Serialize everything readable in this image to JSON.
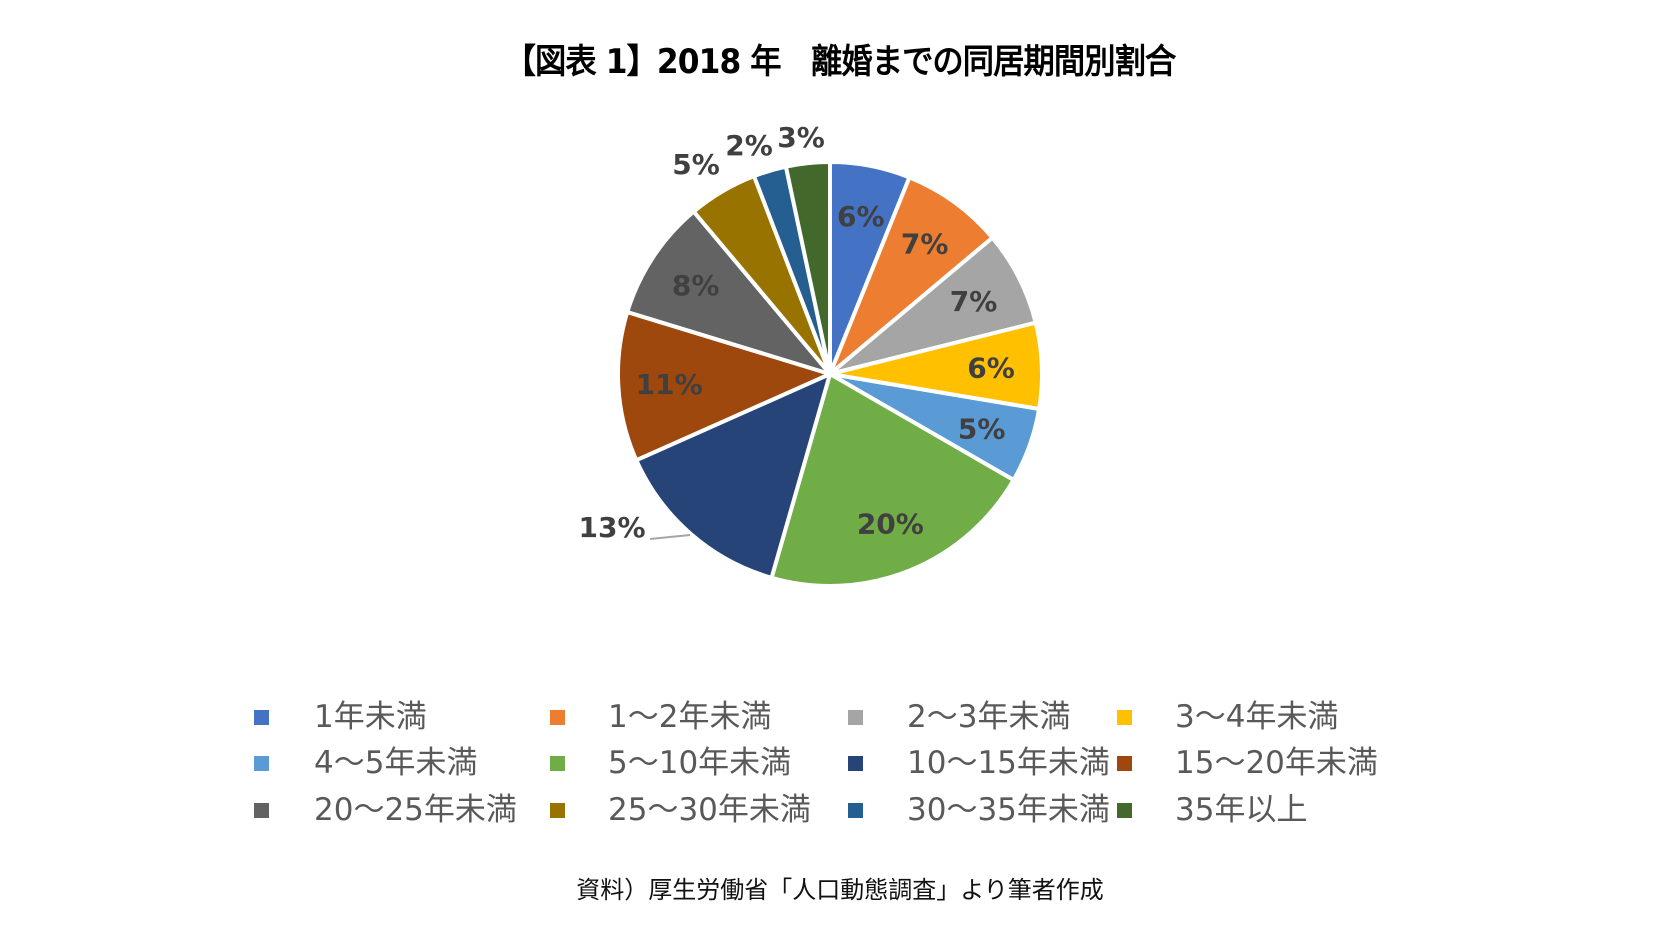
{
  "title": "【図表 1】2018 年　離婚までの同居期間別割合",
  "caption": "資料）厚生労働省「人口動態調査」より筆者作成",
  "label_color": "#404040",
  "chart_data": {
    "type": "pie",
    "title": "【図表 1】2018 年　離婚までの同居期間別割合",
    "start_angle": "12 o'clock",
    "direction": "clockwise",
    "legend_position": "bottom",
    "categories": [
      "1年未満",
      "1～2年未満",
      "2～3年未満",
      "3～4年未満",
      "4～5年未満",
      "5～10年未満",
      "10～15年未満",
      "15～20年未満",
      "20～25年未満",
      "25～30年未満",
      "30～35年未満",
      "35年以上"
    ],
    "values": [
      6,
      7,
      7,
      6,
      5,
      20,
      13,
      11,
      8,
      5,
      2,
      3
    ],
    "labels": [
      "6%",
      "7%",
      "7%",
      "6%",
      "5%",
      "20%",
      "13%",
      "11%",
      "8%",
      "5%",
      "2%",
      "3%"
    ],
    "colors": [
      "#4472C4",
      "#ED7D31",
      "#A5A5A5",
      "#FFC000",
      "#5B9BD5",
      "#70AD47",
      "#264478",
      "#9E480E",
      "#636363",
      "#997300",
      "#255E91",
      "#43682B"
    ],
    "boundary_angles_deg": [
      0,
      22,
      50,
      76,
      99.5,
      120,
      196,
      246,
      287,
      320,
      339,
      348,
      360
    ]
  },
  "legend": {
    "items": [
      {
        "label": "1年未満",
        "color": "#4472C4"
      },
      {
        "label": "1～2年未満",
        "color": "#ED7D31"
      },
      {
        "label": "2～3年未満",
        "color": "#A5A5A5"
      },
      {
        "label": "3～4年未満",
        "color": "#FFC000"
      },
      {
        "label": "4～5年未満",
        "color": "#5B9BD5"
      },
      {
        "label": "5～10年未満",
        "color": "#70AD47"
      },
      {
        "label": "10～15年未満",
        "color": "#264478"
      },
      {
        "label": "15～20年未満",
        "color": "#9E480E"
      },
      {
        "label": "20～25年未満",
        "color": "#636363"
      },
      {
        "label": "25～30年未満",
        "color": "#997300"
      },
      {
        "label": "30～35年未満",
        "color": "#255E91"
      },
      {
        "label": "35年以上",
        "color": "#43682B"
      }
    ]
  }
}
